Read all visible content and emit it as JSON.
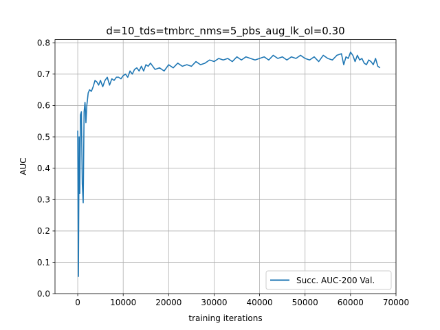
{
  "chart_data": {
    "type": "line",
    "title": "d=10_tds=tmbrc_nms=5_pbs_aug_lk_ol=0.30",
    "xlabel": "training iterations",
    "ylabel": "AUC",
    "xlim": [
      -5000,
      70000
    ],
    "ylim": [
      0.0,
      0.81
    ],
    "xticks": [
      0,
      10000,
      20000,
      30000,
      40000,
      50000,
      60000,
      70000
    ],
    "xtick_labels": [
      "0",
      "10000",
      "20000",
      "30000",
      "40000",
      "50000",
      "60000",
      "70000"
    ],
    "yticks": [
      0.0,
      0.1,
      0.2,
      0.3,
      0.4,
      0.5,
      0.6,
      0.7,
      0.8
    ],
    "ytick_labels": [
      "0.0",
      "0.1",
      "0.2",
      "0.3",
      "0.4",
      "0.5",
      "0.6",
      "0.7",
      "0.8"
    ],
    "grid": true,
    "legend_position": "lower-right",
    "color": "#1f77b4",
    "series": [
      {
        "name": "Succ. AUC-200 Val.",
        "x": [
          0,
          150,
          300,
          450,
          600,
          800,
          1000,
          1200,
          1400,
          1600,
          1800,
          2000,
          2300,
          2600,
          3000,
          3400,
          3800,
          4200,
          4600,
          5000,
          5500,
          6000,
          6500,
          7000,
          7500,
          8000,
          8500,
          9000,
          9500,
          10000,
          10500,
          11000,
          11500,
          12000,
          12500,
          13000,
          13500,
          14000,
          14500,
          15000,
          15500,
          16000,
          17000,
          18000,
          19000,
          20000,
          21000,
          22000,
          23000,
          24000,
          25000,
          26000,
          27000,
          28000,
          29000,
          30000,
          31000,
          32000,
          33000,
          34000,
          35000,
          36000,
          37000,
          38000,
          39000,
          40000,
          41000,
          42000,
          43000,
          44000,
          45000,
          46000,
          47000,
          48000,
          49000,
          50000,
          51000,
          52000,
          53000,
          54000,
          55000,
          56000,
          57000,
          58000,
          58500,
          59000,
          59500,
          60000,
          60500,
          61000,
          61500,
          62000,
          62500,
          63000,
          63500,
          64000,
          64500,
          65000,
          65500,
          66000,
          66500
        ],
        "y": [
          0.52,
          0.055,
          0.5,
          0.32,
          0.57,
          0.58,
          0.35,
          0.29,
          0.58,
          0.61,
          0.545,
          0.6,
          0.64,
          0.65,
          0.645,
          0.66,
          0.68,
          0.675,
          0.665,
          0.68,
          0.66,
          0.68,
          0.69,
          0.665,
          0.685,
          0.68,
          0.69,
          0.69,
          0.685,
          0.695,
          0.7,
          0.69,
          0.71,
          0.7,
          0.715,
          0.72,
          0.71,
          0.725,
          0.71,
          0.73,
          0.725,
          0.735,
          0.715,
          0.72,
          0.71,
          0.73,
          0.72,
          0.735,
          0.725,
          0.73,
          0.725,
          0.74,
          0.73,
          0.735,
          0.745,
          0.74,
          0.75,
          0.745,
          0.75,
          0.74,
          0.755,
          0.745,
          0.755,
          0.75,
          0.745,
          0.75,
          0.755,
          0.745,
          0.76,
          0.75,
          0.755,
          0.745,
          0.755,
          0.75,
          0.76,
          0.75,
          0.745,
          0.755,
          0.74,
          0.76,
          0.75,
          0.745,
          0.76,
          0.765,
          0.73,
          0.755,
          0.75,
          0.77,
          0.76,
          0.74,
          0.76,
          0.745,
          0.75,
          0.735,
          0.73,
          0.745,
          0.74,
          0.73,
          0.75,
          0.725,
          0.72
        ]
      }
    ]
  }
}
